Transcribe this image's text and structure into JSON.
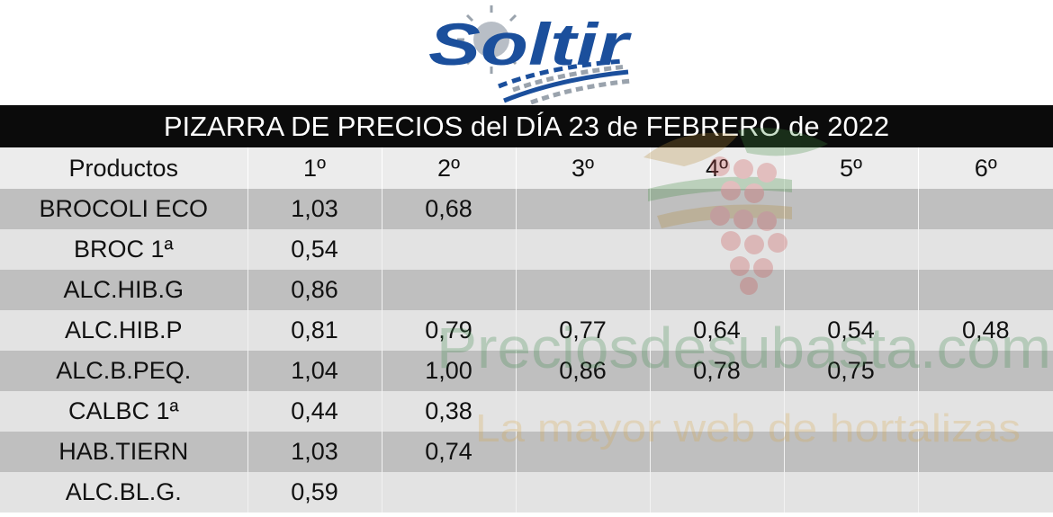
{
  "logo": {
    "text": "Soltir"
  },
  "title": "PIZARRA DE PRECIOS del DÍA 23 de FEBRERO de 2022",
  "table": {
    "headers": [
      "Productos",
      "1º",
      "2º",
      "3º",
      "4º",
      "5º",
      "6º"
    ],
    "rows": [
      {
        "product": "BROCOLI ECO",
        "prices": [
          "1,03",
          "0,68",
          "",
          "",
          "",
          ""
        ]
      },
      {
        "product": "BROC 1ª",
        "prices": [
          "0,54",
          "",
          "",
          "",
          "",
          ""
        ]
      },
      {
        "product": "ALC.HIB.G",
        "prices": [
          "0,86",
          "",
          "",
          "",
          "",
          ""
        ]
      },
      {
        "product": "ALC.HIB.P",
        "prices": [
          "0,81",
          "0,79",
          "0,77",
          "0,64",
          "0,54",
          "0,48"
        ]
      },
      {
        "product": "ALC.B.PEQ.",
        "prices": [
          "1,04",
          "1,00",
          "0,86",
          "0,78",
          "0,75",
          ""
        ]
      },
      {
        "product": "CALBC 1ª",
        "prices": [
          "0,44",
          "0,38",
          "",
          "",
          "",
          ""
        ]
      },
      {
        "product": "HAB.TIERN",
        "prices": [
          "1,03",
          "0,74",
          "",
          "",
          "",
          ""
        ]
      },
      {
        "product": "ALC.BL.G.",
        "prices": [
          "0,59",
          "",
          "",
          "",
          "",
          ""
        ]
      }
    ]
  },
  "watermark": {
    "line1": "Preciosdesubasta.com",
    "line2": "La mayor web de hortalizas"
  },
  "colors": {
    "logo_blue": "#1b4f9c",
    "logo_gray": "#9aa3ad",
    "title_bg": "#0b0b0b",
    "row_dark": "#bfbfbf",
    "row_light": "#e3e3e3",
    "header_bg": "#ececec"
  }
}
